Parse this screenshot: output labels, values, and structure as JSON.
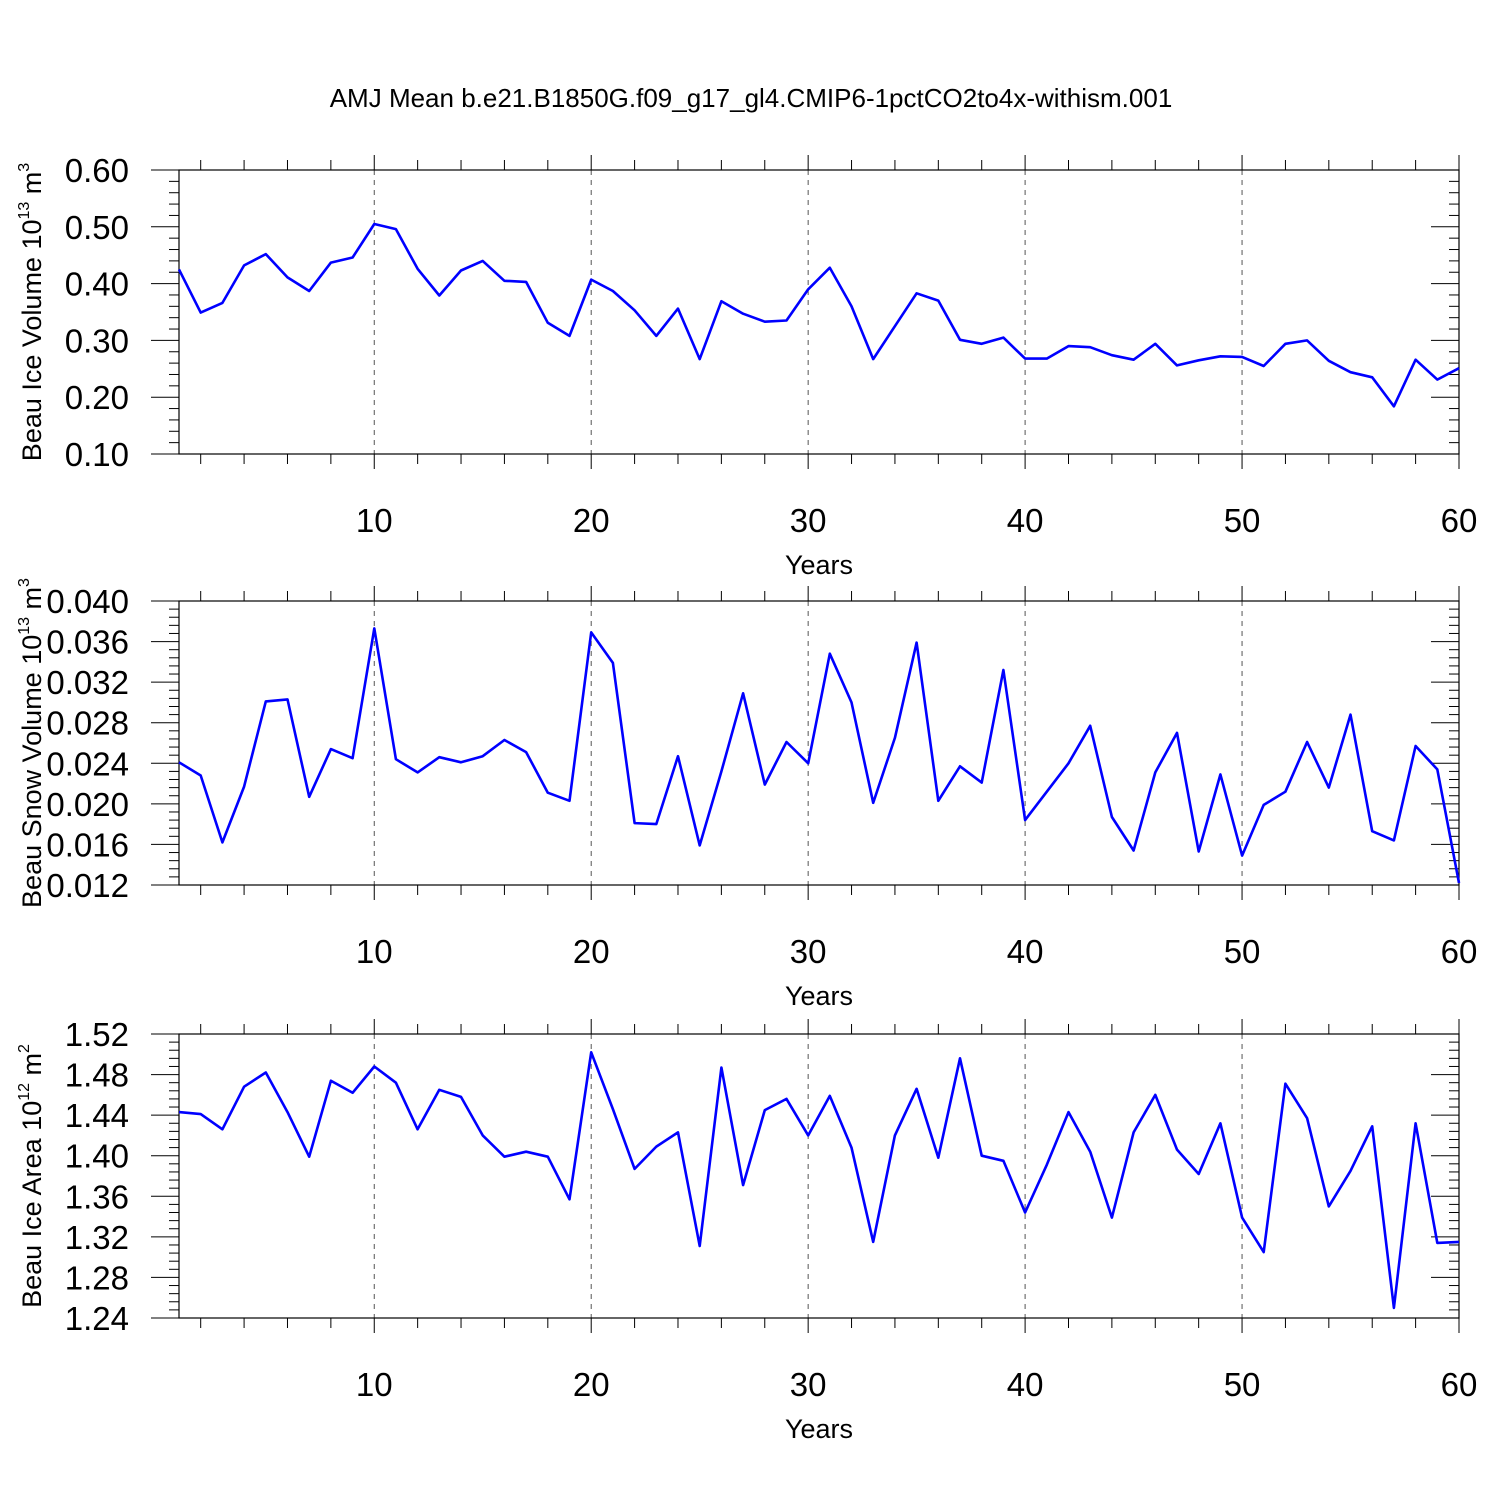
{
  "title": "AMJ Mean b.e21.B1850G.f09_g17_gl4.CMIP6-1pctCO2to4x-withism.001",
  "chart_data": [
    {
      "type": "line",
      "xlabel": "Years",
      "ylabel": "Beau Ice Volume 10",
      "ylabel_exp": "13",
      "ylabel_unit": "m",
      "ylabel_unit_exp": "3",
      "xlim": [
        1,
        60
      ],
      "ylim": [
        0.1,
        0.6
      ],
      "x_major_ticks": [
        "10",
        "20",
        "30",
        "40",
        "50",
        "60"
      ],
      "y_major_ticks": [
        "0.10",
        "0.20",
        "0.30",
        "0.40",
        "0.50",
        "0.60"
      ],
      "series_color": "#0000ff",
      "x": [
        1,
        2,
        3,
        4,
        5,
        6,
        7,
        8,
        9,
        10,
        11,
        12,
        13,
        14,
        15,
        16,
        17,
        18,
        19,
        20,
        21,
        22,
        23,
        24,
        25,
        26,
        27,
        28,
        29,
        30,
        31,
        32,
        33,
        34,
        35,
        36,
        37,
        38,
        39,
        40,
        41,
        42,
        43,
        44,
        45,
        46,
        47,
        48,
        49,
        50,
        51,
        52,
        53,
        54,
        55,
        56,
        57,
        58,
        59,
        60
      ],
      "values": [
        0.425,
        0.349,
        0.366,
        0.432,
        0.452,
        0.411,
        0.387,
        0.437,
        0.446,
        0.505,
        0.496,
        0.426,
        0.379,
        0.423,
        0.44,
        0.405,
        0.403,
        0.331,
        0.308,
        0.407,
        0.387,
        0.353,
        0.308,
        0.356,
        0.267,
        0.369,
        0.347,
        0.333,
        0.335,
        0.39,
        0.428,
        0.36,
        0.267,
        0.325,
        0.383,
        0.37,
        0.301,
        0.294,
        0.305,
        0.268,
        0.268,
        0.29,
        0.288,
        0.274,
        0.266,
        0.294,
        0.256,
        0.265,
        0.272,
        0.271,
        0.255,
        0.294,
        0.3,
        0.264,
        0.244,
        0.235,
        0.184,
        0.266,
        0.231,
        0.251
      ]
    },
    {
      "type": "line",
      "xlabel": "Years",
      "ylabel": "Beau Snow Volume 10",
      "ylabel_exp": "13",
      "ylabel_unit": "m",
      "ylabel_unit_exp": "3",
      "xlim": [
        1,
        60
      ],
      "ylim": [
        0.012,
        0.04
      ],
      "x_major_ticks": [
        "10",
        "20",
        "30",
        "40",
        "50",
        "60"
      ],
      "y_major_ticks": [
        "0.012",
        "0.016",
        "0.020",
        "0.024",
        "0.028",
        "0.032",
        "0.036",
        "0.040"
      ],
      "series_color": "#0000ff",
      "x": [
        1,
        2,
        3,
        4,
        5,
        6,
        7,
        8,
        9,
        10,
        11,
        12,
        13,
        14,
        15,
        16,
        17,
        18,
        19,
        20,
        21,
        22,
        23,
        24,
        25,
        26,
        27,
        28,
        29,
        30,
        31,
        32,
        33,
        34,
        35,
        36,
        37,
        38,
        39,
        40,
        41,
        42,
        43,
        44,
        45,
        46,
        47,
        48,
        49,
        50,
        51,
        52,
        53,
        54,
        55,
        56,
        57,
        58,
        59,
        60
      ],
      "values": [
        0.0241,
        0.0228,
        0.0162,
        0.0217,
        0.0301,
        0.0303,
        0.0207,
        0.0254,
        0.0245,
        0.0373,
        0.0244,
        0.0231,
        0.0246,
        0.0241,
        0.0247,
        0.0263,
        0.0251,
        0.0211,
        0.0203,
        0.0369,
        0.0339,
        0.0181,
        0.018,
        0.0247,
        0.0159,
        0.0232,
        0.0309,
        0.0219,
        0.0261,
        0.024,
        0.0348,
        0.03,
        0.0201,
        0.0265,
        0.0359,
        0.0203,
        0.0237,
        0.0221,
        0.0332,
        0.0184,
        0.0212,
        0.024,
        0.0277,
        0.0187,
        0.0154,
        0.0231,
        0.027,
        0.0153,
        0.0229,
        0.0149,
        0.0199,
        0.0212,
        0.0261,
        0.0216,
        0.0288,
        0.0173,
        0.0164,
        0.0257,
        0.0234,
        0.0122
      ]
    },
    {
      "type": "line",
      "xlabel": "Years",
      "ylabel": "Beau Ice Area 10",
      "ylabel_exp": "12",
      "ylabel_unit": "m",
      "ylabel_unit_exp": "2",
      "xlim": [
        1,
        60
      ],
      "ylim": [
        1.24,
        1.52
      ],
      "x_major_ticks": [
        "10",
        "20",
        "30",
        "40",
        "50",
        "60"
      ],
      "y_major_ticks": [
        "1.24",
        "1.28",
        "1.32",
        "1.36",
        "1.40",
        "1.44",
        "1.48",
        "1.52"
      ],
      "series_color": "#0000ff",
      "x": [
        1,
        2,
        3,
        4,
        5,
        6,
        7,
        8,
        9,
        10,
        11,
        12,
        13,
        14,
        15,
        16,
        17,
        18,
        19,
        20,
        21,
        22,
        23,
        24,
        25,
        26,
        27,
        28,
        29,
        30,
        31,
        32,
        33,
        34,
        35,
        36,
        37,
        38,
        39,
        40,
        41,
        42,
        43,
        44,
        45,
        46,
        47,
        48,
        49,
        50,
        51,
        52,
        53,
        54,
        55,
        56,
        57,
        58,
        59,
        60
      ],
      "values": [
        1.443,
        1.441,
        1.426,
        1.468,
        1.482,
        1.443,
        1.399,
        1.474,
        1.462,
        1.488,
        1.472,
        1.426,
        1.465,
        1.458,
        1.42,
        1.399,
        1.404,
        1.399,
        1.357,
        1.502,
        1.446,
        1.387,
        1.409,
        1.423,
        1.311,
        1.487,
        1.371,
        1.445,
        1.456,
        1.42,
        1.459,
        1.408,
        1.315,
        1.42,
        1.466,
        1.398,
        1.496,
        1.4,
        1.395,
        1.344,
        1.391,
        1.443,
        1.404,
        1.339,
        1.423,
        1.46,
        1.406,
        1.382,
        1.432,
        1.339,
        1.305,
        1.471,
        1.437,
        1.35,
        1.385,
        1.429,
        1.25,
        1.432,
        1.314,
        1.315
      ]
    }
  ]
}
